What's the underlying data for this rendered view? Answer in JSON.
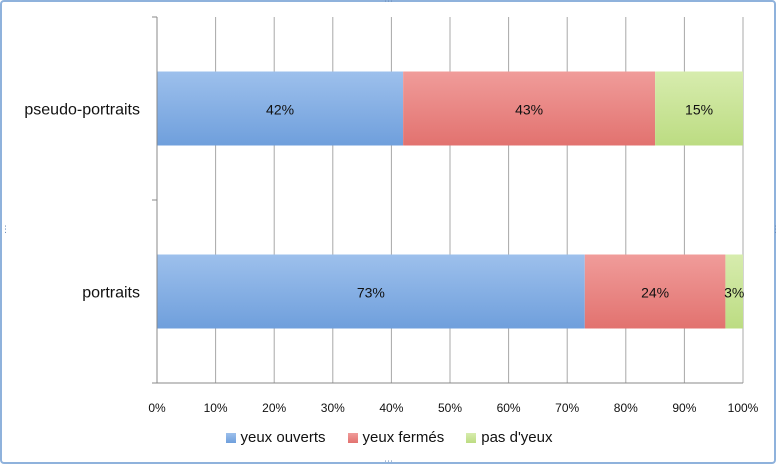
{
  "chart_data": {
    "type": "bar",
    "orientation": "horizontal",
    "stacked": "percent",
    "categories": [
      "pseudo-portraits",
      "portraits"
    ],
    "series": [
      {
        "name": "yeux ouverts",
        "values": [
          42,
          73
        ],
        "labels": [
          "42%",
          "73%"
        ],
        "color": "#6f9fdc",
        "color_light": "#9dc0ec"
      },
      {
        "name": "yeux fermés",
        "values": [
          43,
          24
        ],
        "labels": [
          "43%",
          "24%"
        ],
        "color": "#e2726f",
        "color_light": "#f09c9a"
      },
      {
        "name": "pas d'yeux",
        "values": [
          15,
          3
        ],
        "labels": [
          "15%",
          "3%"
        ],
        "color": "#bcdc82",
        "color_light": "#d7ecae"
      }
    ],
    "x_ticks": [
      "0%",
      "10%",
      "20%",
      "30%",
      "40%",
      "50%",
      "60%",
      "70%",
      "80%",
      "90%",
      "100%"
    ],
    "xlim": [
      0,
      100
    ],
    "grid": true,
    "legend_position": "bottom"
  }
}
